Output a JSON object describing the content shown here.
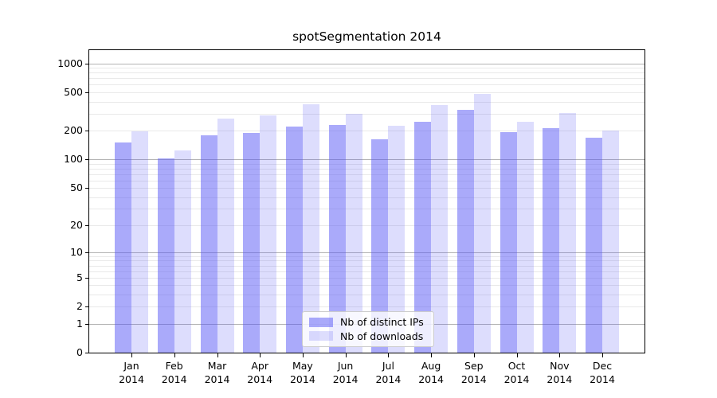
{
  "figure": {
    "background": "#ffffff"
  },
  "chart_data": {
    "type": "bar",
    "title": "spotSegmentation 2014",
    "categories": [
      "Jan 2014",
      "Feb 2014",
      "Mar 2014",
      "Apr 2014",
      "May 2014",
      "Jun 2014",
      "Jul 2014",
      "Aug 2014",
      "Sep 2014",
      "Oct 2014",
      "Nov 2014",
      "Dec 2014"
    ],
    "series": [
      {
        "name": "Nb of distinct IPs",
        "color": "rgba(85,85,245,0.5)",
        "values": [
          150,
          102,
          180,
          190,
          220,
          229,
          162,
          249,
          331,
          192,
          212,
          167
        ]
      },
      {
        "name": "Nb of downloads",
        "color": "rgba(85,85,245,0.2)",
        "values": [
          197,
          124,
          267,
          285,
          372,
          299,
          223,
          368,
          485,
          247,
          304,
          199
        ]
      }
    ],
    "xlabel": "",
    "ylabel": "",
    "yscale": "log1p",
    "ylim": [
      0,
      1368
    ],
    "yticks": [
      1000,
      500,
      200,
      100,
      50,
      20,
      10,
      5,
      2,
      1,
      0
    ],
    "grid": {
      "orientation": "horizontal",
      "major_color": "#b3b3b3",
      "minor_color": "#e9e9e9",
      "major_at": [
        1,
        10,
        100,
        1000
      ],
      "minor_per_decade": [
        2,
        3,
        4,
        5,
        6,
        7,
        8,
        9
      ]
    },
    "legend": {
      "position": "lower-center-inside",
      "entries": [
        "Nb of distinct IPs",
        "Nb of downloads"
      ]
    }
  }
}
